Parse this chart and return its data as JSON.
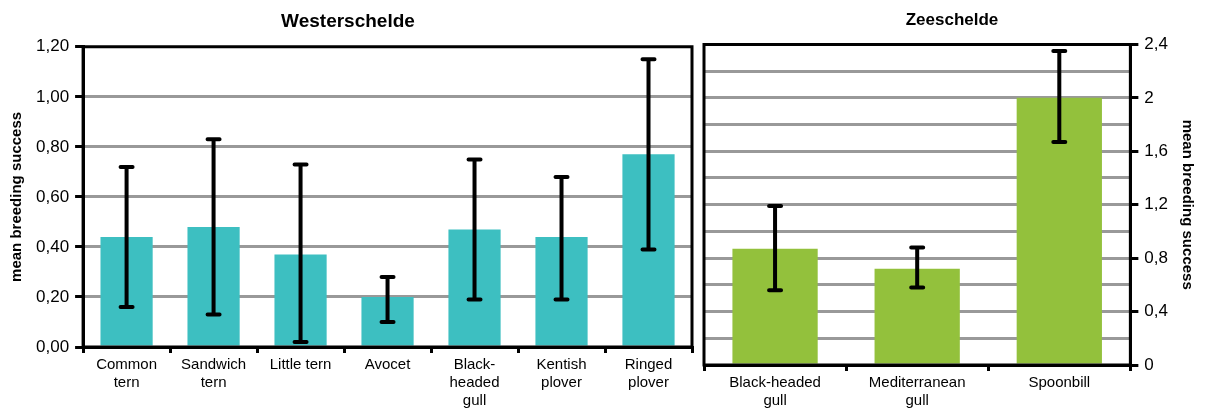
{
  "chart_data": [
    {
      "type": "bar",
      "title": "Westerschelde",
      "ylabel": "mean breeding success",
      "categories": [
        "Common tern",
        "Sandwich tern",
        "Little tern",
        "Avocet",
        "Black-headed gull",
        "Kentish plover",
        "Ringed plover"
      ],
      "series": [
        {
          "color": "#3dbfc1",
          "values": [
            0.44,
            0.48,
            0.37,
            0.2,
            0.47,
            0.44,
            0.77
          ],
          "errors": [
            [
              0.16,
              0.72
            ],
            [
              0.13,
              0.83
            ],
            [
              0.02,
              0.73
            ],
            [
              0.1,
              0.28
            ],
            [
              0.19,
              0.75
            ],
            [
              0.19,
              0.68
            ],
            [
              0.39,
              1.15
            ]
          ]
        }
      ],
      "ylim": [
        0,
        1.2
      ],
      "yticks": [
        {
          "value": 0,
          "label": "0,00"
        },
        {
          "value": 0.2,
          "label": "0,20"
        },
        {
          "value": 0.4,
          "label": "0,40"
        },
        {
          "value": 0.6,
          "label": "0,60"
        },
        {
          "value": 0.8,
          "label": "0,80"
        },
        {
          "value": 1.0,
          "label": "1,00"
        },
        {
          "value": 1.2,
          "label": "1,20"
        }
      ],
      "grid": "y"
    },
    {
      "type": "bar",
      "title": "Zeeschelde",
      "y2label": "mean breeding success",
      "categories": [
        "Black-headed gull",
        "Mediterranean gull",
        "Spoonbill"
      ],
      "series": [
        {
          "color": "#93c13c",
          "axis": "y2",
          "values": [
            0.87,
            0.72,
            2.0
          ],
          "errors": [
            [
              0.56,
              1.19
            ],
            [
              0.58,
              0.88
            ],
            [
              1.67,
              2.35
            ]
          ]
        }
      ],
      "y2lim": [
        0,
        2.4
      ],
      "y2ticks": [
        0,
        {
          "value": 0.2,
          "label": null
        },
        {
          "value": 0.4,
          "label": "0,4"
        },
        {
          "value": 0.6,
          "label": null
        },
        {
          "value": 0.8,
          "label": "0,8"
        },
        {
          "value": 1.0,
          "label": null
        },
        {
          "value": 1.2,
          "label": "1,2"
        },
        {
          "value": 1.4,
          "label": null
        },
        {
          "value": 1.6,
          "label": "1,6"
        },
        {
          "value": 1.8,
          "label": null
        },
        2,
        {
          "value": 2.2,
          "label": null
        },
        {
          "value": 2.4,
          "label": "2,4"
        }
      ],
      "grid": "y"
    }
  ]
}
